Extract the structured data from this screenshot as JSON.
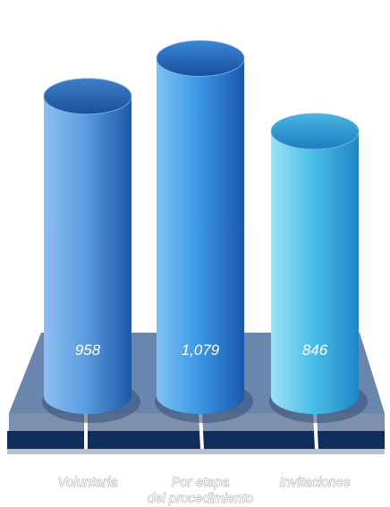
{
  "chart_data": {
    "type": "bar",
    "style": "3d-cylinder",
    "categories": [
      "Voluntaria",
      "Por etapa\ndel procedimiento",
      "Invitaciones"
    ],
    "values": [
      958,
      1079,
      846
    ],
    "value_labels": [
      "958",
      "1,079",
      "846"
    ],
    "title": "",
    "xlabel": "",
    "ylabel": "",
    "ylim": [
      0,
      1200
    ],
    "grid": false,
    "legend": "none",
    "colors": {
      "series": [
        "#3c86cf",
        "#2f8fdb",
        "#33b2da"
      ],
      "platform_top": "#6b86ad",
      "platform_edge": "#0d2f5c",
      "platform_base": "#8794a8"
    }
  }
}
